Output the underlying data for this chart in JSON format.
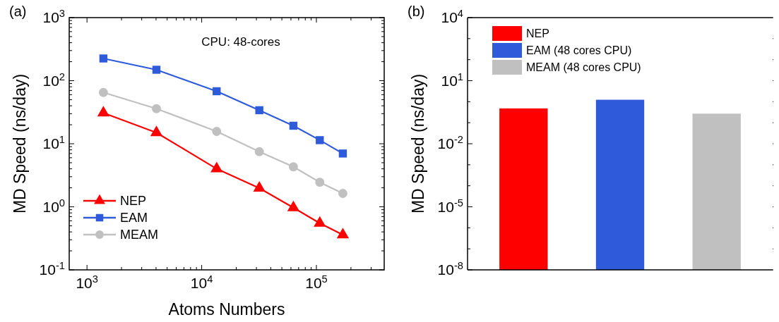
{
  "chart_data": [
    {
      "type": "line",
      "title": "(a)",
      "xlabel": "Atoms Numbers",
      "ylabel": "MD Speed (ns/day)",
      "annotations": [
        "CPU: 48-cores"
      ],
      "log": "xy",
      "legend": "bottom left",
      "line_style": "solid",
      "grid": false,
      "x": [
        1390,
        4030,
        13500,
        31800,
        63000,
        107000,
        170000
      ],
      "xlim": [
        700,
        390000
      ],
      "ylim": [
        0.1,
        1000
      ],
      "xticks": [
        {
          "value": 1000,
          "label": "10$^{3}$"
        },
        {
          "value": 2000,
          "label": null
        },
        {
          "value": 3000,
          "label": null
        },
        {
          "value": 4000,
          "label": null
        },
        {
          "value": 5000,
          "label": null
        },
        {
          "value": 6000,
          "label": null
        },
        {
          "value": 7000,
          "label": null
        },
        {
          "value": 8000,
          "label": null
        },
        {
          "value": 9000,
          "label": null
        },
        {
          "value": 10000,
          "label": "10$^{4}$"
        },
        {
          "value": 20000,
          "label": null
        },
        {
          "value": 30000,
          "label": null
        },
        {
          "value": 40000,
          "label": null
        },
        {
          "value": 50000,
          "label": null
        },
        {
          "value": 60000,
          "label": null
        },
        {
          "value": 70000,
          "label": null
        },
        {
          "value": 80000,
          "label": null
        },
        {
          "value": 90000,
          "label": null
        },
        {
          "value": 100000,
          "label": "10$^{5}$"
        },
        {
          "value": 200000,
          "label": null
        },
        {
          "value": 300000,
          "label": null
        }
      ],
      "yticks": [
        {
          "value": 0.1,
          "label": "10$^{-1}$"
        },
        {
          "value": 0.2,
          "label": null
        },
        {
          "value": 0.3,
          "label": null
        },
        {
          "value": 0.4,
          "label": null
        },
        {
          "value": 0.5,
          "label": null
        },
        {
          "value": 0.6,
          "label": null
        },
        {
          "value": 0.7,
          "label": null
        },
        {
          "value": 0.8,
          "label": null
        },
        {
          "value": 0.9,
          "label": null
        },
        {
          "value": 1,
          "label": "10$^{0}$"
        },
        {
          "value": 2,
          "label": null
        },
        {
          "value": 3,
          "label": null
        },
        {
          "value": 4,
          "label": null
        },
        {
          "value": 5,
          "label": null
        },
        {
          "value": 6,
          "label": null
        },
        {
          "value": 7,
          "label": null
        },
        {
          "value": 8,
          "label": null
        },
        {
          "value": 9,
          "label": null
        },
        {
          "value": 10,
          "label": "10$^{1}$"
        },
        {
          "value": 20,
          "label": null
        },
        {
          "value": 30,
          "label": null
        },
        {
          "value": 40,
          "label": null
        },
        {
          "value": 50,
          "label": null
        },
        {
          "value": 60,
          "label": null
        },
        {
          "value": 70,
          "label": null
        },
        {
          "value": 80,
          "label": null
        },
        {
          "value": 90,
          "label": null
        },
        {
          "value": 100,
          "label": "10$^{2}$"
        },
        {
          "value": 200,
          "label": null
        },
        {
          "value": 300,
          "label": null
        },
        {
          "value": 400,
          "label": null
        },
        {
          "value": 500,
          "label": null
        },
        {
          "value": 600,
          "label": null
        },
        {
          "value": 700,
          "label": null
        },
        {
          "value": 800,
          "label": null
        },
        {
          "value": 900,
          "label": null
        },
        {
          "value": 1000,
          "label": "10$^{3}$"
        }
      ],
      "series": [
        {
          "name": "NEP",
          "color": "#ff0000",
          "marker": "triangle",
          "values": [
            30.8,
            15,
            4.0,
            1.98,
            0.97,
            0.55,
            0.36
          ]
        },
        {
          "name": "EAM",
          "color": "#2f5bdb",
          "marker": "square",
          "values": [
            225,
            149,
            68,
            34,
            19.3,
            11.4,
            7.0
          ]
        },
        {
          "name": "MEAM",
          "color": "#c0c0c0",
          "marker": "circle",
          "values": [
            65,
            36,
            15.7,
            7.5,
            4.3,
            2.45,
            1.63
          ]
        }
      ]
    },
    {
      "type": "bar",
      "title": "(b)",
      "ylabel": "MD Speed (ns/day)",
      "log": "y",
      "legend": "top left",
      "grid": false,
      "categories": [
        null,
        null,
        null
      ],
      "ylim": [
        1e-08,
        10000
      ],
      "yticks": [
        {
          "value": 1e-08,
          "label": "10$^{-8}$"
        },
        {
          "value": 1e-07,
          "label": null
        },
        {
          "value": 1e-06,
          "label": null
        },
        {
          "value": 1e-05,
          "label": "10$^{-5}$"
        },
        {
          "value": 0.0001,
          "label": null
        },
        {
          "value": 0.001,
          "label": null
        },
        {
          "value": 0.01,
          "label": "10$^{-2}$"
        },
        {
          "value": 0.1,
          "label": null
        },
        {
          "value": 1,
          "label": null
        },
        {
          "value": 10,
          "label": "10$^{1}$"
        },
        {
          "value": 100,
          "label": null
        },
        {
          "value": 1000,
          "label": null
        },
        {
          "value": 10000,
          "label": "10$^{4}$"
        }
      ],
      "series": [
        {
          "name": "NEP",
          "color": "#ff0000",
          "values": [
            0.48,
            null,
            null
          ]
        },
        {
          "name": "EAM (48 cores CPU)",
          "color": "#2f5bdb",
          "values": [
            null,
            1.24,
            null
          ]
        },
        {
          "name": "MEAM (48 cores CPU)",
          "color": "#c0c0c0",
          "values": [
            null,
            null,
            0.27
          ]
        }
      ]
    }
  ]
}
